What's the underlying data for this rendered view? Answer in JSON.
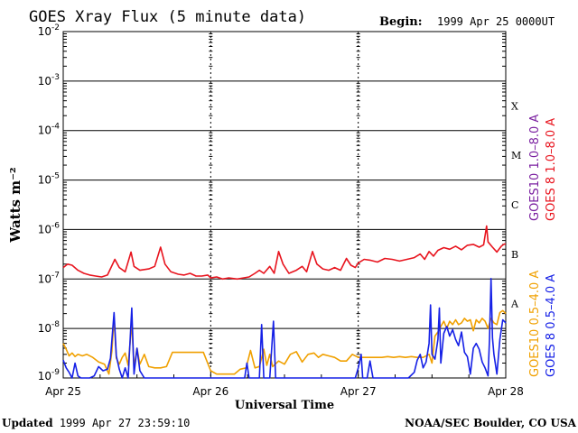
{
  "header": {
    "title": "GOES Xray Flux (5 minute data)",
    "begin_label": "Begin:",
    "begin_value": "1999 Apr 25 0000UT"
  },
  "footer": {
    "updated_label": "Updated",
    "updated_value": "1999 Apr 27 23:59:10",
    "credit": "NOAA/SEC Boulder, CO USA"
  },
  "colors": {
    "goes10_long": "#7a1fa0",
    "goes8_long": "#e8141e",
    "goes10_short": "#f0a000",
    "goes8_short": "#1520e6"
  },
  "chart_data": {
    "type": "line",
    "title": "GOES Xray Flux (5 minute data)",
    "xlabel": "Universal Time",
    "ylabel": "Watts m⁻²",
    "x_unit": "days since 1999 Apr 25 00:00 UT",
    "xlim": [
      0,
      3
    ],
    "ylim": [
      1e-09,
      0.01
    ],
    "y_scale": "log",
    "x_tick_labels": [
      "Apr 25",
      "Apr 26",
      "Apr 27",
      "Apr 28"
    ],
    "y_tick_labels": [
      {
        "base": "10",
        "exp": "-2"
      },
      {
        "base": "10",
        "exp": "-3"
      },
      {
        "base": "10",
        "exp": "-4"
      },
      {
        "base": "10",
        "exp": "-5"
      },
      {
        "base": "10",
        "exp": "-6"
      },
      {
        "base": "10",
        "exp": "-7"
      },
      {
        "base": "10",
        "exp": "-8"
      },
      {
        "base": "10",
        "exp": "-9"
      }
    ],
    "flare_classes": [
      "X",
      "M",
      "C",
      "B",
      "A"
    ],
    "grid": true,
    "legend_position": "right",
    "series": [
      {
        "name": "GOES10 1.0–8.0 A",
        "color": "#7a1fa0",
        "points": []
      },
      {
        "name": "GOES 8 1.0–8.0 A",
        "color": "#e8141e",
        "points": [
          [
            0.0,
            1.7e-07
          ],
          [
            0.03,
            2e-07
          ],
          [
            0.06,
            1.9e-07
          ],
          [
            0.1,
            1.5e-07
          ],
          [
            0.14,
            1.3e-07
          ],
          [
            0.18,
            1.2e-07
          ],
          [
            0.22,
            1.15e-07
          ],
          [
            0.26,
            1.1e-07
          ],
          [
            0.3,
            1.2e-07
          ],
          [
            0.35,
            2.5e-07
          ],
          [
            0.38,
            1.7e-07
          ],
          [
            0.42,
            1.4e-07
          ],
          [
            0.46,
            3.5e-07
          ],
          [
            0.48,
            1.8e-07
          ],
          [
            0.52,
            1.5e-07
          ],
          [
            0.58,
            1.6e-07
          ],
          [
            0.62,
            1.8e-07
          ],
          [
            0.66,
            4.4e-07
          ],
          [
            0.69,
            2e-07
          ],
          [
            0.73,
            1.4e-07
          ],
          [
            0.78,
            1.25e-07
          ],
          [
            0.82,
            1.2e-07
          ],
          [
            0.86,
            1.3e-07
          ],
          [
            0.9,
            1.15e-07
          ],
          [
            0.94,
            1.15e-07
          ],
          [
            0.98,
            1.2e-07
          ],
          [
            1.0,
            1.05e-07
          ],
          [
            1.04,
            1.1e-07
          ],
          [
            1.08,
            1e-07
          ],
          [
            1.12,
            1.05e-07
          ],
          [
            1.18,
            1e-07
          ],
          [
            1.22,
            1.05e-07
          ],
          [
            1.26,
            1.1e-07
          ],
          [
            1.3,
            1.3e-07
          ],
          [
            1.33,
            1.5e-07
          ],
          [
            1.36,
            1.3e-07
          ],
          [
            1.4,
            1.8e-07
          ],
          [
            1.43,
            1.3e-07
          ],
          [
            1.46,
            3.6e-07
          ],
          [
            1.49,
            2e-07
          ],
          [
            1.53,
            1.3e-07
          ],
          [
            1.58,
            1.5e-07
          ],
          [
            1.62,
            1.8e-07
          ],
          [
            1.65,
            1.4e-07
          ],
          [
            1.69,
            3.6e-07
          ],
          [
            1.72,
            2e-07
          ],
          [
            1.76,
            1.6e-07
          ],
          [
            1.8,
            1.5e-07
          ],
          [
            1.84,
            1.7e-07
          ],
          [
            1.88,
            1.5e-07
          ],
          [
            1.92,
            2.6e-07
          ],
          [
            1.95,
            1.9e-07
          ],
          [
            1.98,
            1.7e-07
          ],
          [
            2.0,
            2.1e-07
          ],
          [
            2.04,
            2.5e-07
          ],
          [
            2.08,
            2.4e-07
          ],
          [
            2.13,
            2.2e-07
          ],
          [
            2.18,
            2.6e-07
          ],
          [
            2.23,
            2.5e-07
          ],
          [
            2.28,
            2.3e-07
          ],
          [
            2.33,
            2.5e-07
          ],
          [
            2.38,
            2.7e-07
          ],
          [
            2.42,
            3.2e-07
          ],
          [
            2.45,
            2.5e-07
          ],
          [
            2.48,
            3.6e-07
          ],
          [
            2.51,
            2.9e-07
          ],
          [
            2.54,
            3.8e-07
          ],
          [
            2.58,
            4.3e-07
          ],
          [
            2.62,
            4e-07
          ],
          [
            2.66,
            4.6e-07
          ],
          [
            2.7,
            3.9e-07
          ],
          [
            2.74,
            4.8e-07
          ],
          [
            2.78,
            5e-07
          ],
          [
            2.82,
            4.4e-07
          ],
          [
            2.85,
            4.9e-07
          ],
          [
            2.87,
            1.18e-06
          ],
          [
            2.88,
            5.6e-07
          ],
          [
            2.91,
            4.4e-07
          ],
          [
            2.94,
            3.5e-07
          ],
          [
            2.97,
            4.6e-07
          ],
          [
            2.99,
            5.1e-07
          ],
          [
            3.0,
            5.1e-07
          ]
        ]
      },
      {
        "name": "GOES10 0.5–4.0 A",
        "color": "#f0a000",
        "points": [
          [
            0.0,
            5e-09
          ],
          [
            0.02,
            3.8e-09
          ],
          [
            0.04,
            2.8e-09
          ],
          [
            0.06,
            3.2e-09
          ],
          [
            0.08,
            2.7e-09
          ],
          [
            0.1,
            3e-09
          ],
          [
            0.13,
            2.8e-09
          ],
          [
            0.16,
            3e-09
          ],
          [
            0.2,
            2.6e-09
          ],
          [
            0.24,
            2.1e-09
          ],
          [
            0.28,
            1.9e-09
          ],
          [
            0.31,
            1.2e-09
          ],
          [
            0.33,
            3.5e-09
          ],
          [
            0.345,
            1.7e-08
          ],
          [
            0.36,
            2.5e-09
          ],
          [
            0.38,
            1.9e-09
          ],
          [
            0.4,
            2.6e-09
          ],
          [
            0.42,
            3.2e-09
          ],
          [
            0.44,
            1.8e-09
          ],
          [
            0.465,
            1.3e-08
          ],
          [
            0.48,
            1.6e-09
          ],
          [
            0.5,
            4e-09
          ],
          [
            0.52,
            1.9e-09
          ],
          [
            0.55,
            3e-09
          ],
          [
            0.58,
            1.7e-09
          ],
          [
            0.62,
            1.6e-09
          ],
          [
            0.66,
            1.6e-09
          ],
          [
            0.7,
            1.7e-09
          ],
          [
            0.74,
            3.3e-09
          ],
          [
            0.78,
            3.3e-09
          ],
          [
            0.82,
            3.3e-09
          ],
          [
            0.86,
            3.3e-09
          ],
          [
            0.9,
            3.3e-09
          ],
          [
            0.95,
            3.3e-09
          ],
          [
            1.0,
            1.4e-09
          ],
          [
            1.04,
            1.2e-09
          ],
          [
            1.08,
            1.2e-09
          ],
          [
            1.12,
            1.2e-09
          ],
          [
            1.16,
            1.2e-09
          ],
          [
            1.2,
            1.5e-09
          ],
          [
            1.24,
            1.6e-09
          ],
          [
            1.27,
            3.6e-09
          ],
          [
            1.3,
            1.6e-09
          ],
          [
            1.33,
            1.7e-09
          ],
          [
            1.36,
            3.8e-09
          ],
          [
            1.38,
            1.8e-09
          ],
          [
            1.4,
            3e-09
          ],
          [
            1.42,
            1.7e-09
          ],
          [
            1.46,
            2.2e-09
          ],
          [
            1.5,
            1.9e-09
          ],
          [
            1.54,
            3e-09
          ],
          [
            1.58,
            3.4e-09
          ],
          [
            1.62,
            2.1e-09
          ],
          [
            1.66,
            3e-09
          ],
          [
            1.7,
            3.2e-09
          ],
          [
            1.73,
            2.6e-09
          ],
          [
            1.76,
            3e-09
          ],
          [
            1.8,
            2.8e-09
          ],
          [
            1.84,
            2.6e-09
          ],
          [
            1.88,
            2.2e-09
          ],
          [
            1.92,
            2.2e-09
          ],
          [
            1.96,
            3e-09
          ],
          [
            2.0,
            2.6e-09
          ],
          [
            2.04,
            2.6e-09
          ],
          [
            2.08,
            2.6e-09
          ],
          [
            2.12,
            2.6e-09
          ],
          [
            2.16,
            2.6e-09
          ],
          [
            2.2,
            2.7e-09
          ],
          [
            2.24,
            2.6e-09
          ],
          [
            2.28,
            2.7e-09
          ],
          [
            2.32,
            2.6e-09
          ],
          [
            2.36,
            2.7e-09
          ],
          [
            2.4,
            2.6e-09
          ],
          [
            2.44,
            2.6e-09
          ],
          [
            2.48,
            3e-09
          ],
          [
            2.5,
            2e-09
          ],
          [
            2.52,
            7e-09
          ],
          [
            2.54,
            8.5e-09
          ],
          [
            2.56,
            1.1e-08
          ],
          [
            2.58,
            1.4e-08
          ],
          [
            2.6,
            1e-08
          ],
          [
            2.62,
            1.4e-08
          ],
          [
            2.64,
            1.2e-08
          ],
          [
            2.66,
            1.5e-08
          ],
          [
            2.68,
            1.2e-08
          ],
          [
            2.7,
            1.3e-08
          ],
          [
            2.72,
            1.6e-08
          ],
          [
            2.74,
            1.4e-08
          ],
          [
            2.76,
            1.5e-08
          ],
          [
            2.78,
            9e-09
          ],
          [
            2.8,
            1.5e-08
          ],
          [
            2.82,
            1.3e-08
          ],
          [
            2.84,
            1.6e-08
          ],
          [
            2.86,
            1.4e-08
          ],
          [
            2.88,
            1e-08
          ],
          [
            2.9,
            1.6e-08
          ],
          [
            2.92,
            1.3e-08
          ],
          [
            2.94,
            1.2e-08
          ],
          [
            2.96,
            2.1e-08
          ],
          [
            2.98,
            2.3e-08
          ],
          [
            3.0,
            2e-08
          ]
        ]
      },
      {
        "name": "GOES 8 0.5–4.0 A",
        "color": "#1520e6",
        "points": [
          [
            0.0,
            2.3e-09
          ],
          [
            0.02,
            1.6e-09
          ],
          [
            0.04,
            1.3e-09
          ],
          [
            0.06,
            1e-09
          ],
          [
            0.08,
            2e-09
          ],
          [
            0.1,
            1.1e-09
          ],
          [
            0.12,
            1e-09
          ],
          [
            0.15,
            1e-09
          ],
          [
            0.18,
            1e-09
          ],
          [
            0.21,
            1.1e-09
          ],
          [
            0.24,
            1.7e-09
          ],
          [
            0.27,
            1.4e-09
          ],
          [
            0.3,
            1.5e-09
          ],
          [
            0.32,
            2.5e-09
          ],
          [
            0.345,
            2.1e-08
          ],
          [
            0.36,
            2.8e-09
          ],
          [
            0.38,
            1.5e-09
          ],
          [
            0.4,
            1e-09
          ],
          [
            0.42,
            1.6e-09
          ],
          [
            0.44,
            1e-09
          ],
          [
            0.465,
            2.6e-08
          ],
          [
            0.48,
            1.2e-09
          ],
          [
            0.5,
            4e-09
          ],
          [
            0.52,
            1.4e-09
          ],
          [
            0.55,
            1e-09
          ],
          [
            0.6,
            1e-09
          ],
          [
            0.66,
            1e-09
          ],
          [
            0.72,
            1e-09
          ],
          [
            0.78,
            1e-09
          ],
          [
            0.84,
            1e-09
          ],
          [
            0.9,
            1e-09
          ],
          [
            0.96,
            1e-09
          ],
          [
            1.02,
            1e-09
          ],
          [
            1.08,
            1e-09
          ],
          [
            1.14,
            1e-09
          ],
          [
            1.2,
            1e-09
          ],
          [
            1.23,
            1e-09
          ],
          [
            1.245,
            2e-09
          ],
          [
            1.26,
            1e-09
          ],
          [
            1.3,
            1e-09
          ],
          [
            1.33,
            1e-09
          ],
          [
            1.345,
            1.2e-08
          ],
          [
            1.36,
            1e-09
          ],
          [
            1.4,
            1e-09
          ],
          [
            1.425,
            1.4e-08
          ],
          [
            1.44,
            1e-09
          ],
          [
            1.5,
            1e-09
          ],
          [
            1.56,
            1e-09
          ],
          [
            1.62,
            1e-09
          ],
          [
            1.68,
            1e-09
          ],
          [
            1.74,
            1e-09
          ],
          [
            1.8,
            1e-09
          ],
          [
            1.86,
            1e-09
          ],
          [
            1.92,
            1e-09
          ],
          [
            1.98,
            1e-09
          ],
          [
            2.0,
            1.6e-09
          ],
          [
            2.02,
            3e-09
          ],
          [
            2.03,
            1e-09
          ],
          [
            2.06,
            1e-09
          ],
          [
            2.08,
            2.2e-09
          ],
          [
            2.1,
            1e-09
          ],
          [
            2.16,
            1e-09
          ],
          [
            2.22,
            1e-09
          ],
          [
            2.28,
            1e-09
          ],
          [
            2.34,
            1e-09
          ],
          [
            2.38,
            1.3e-09
          ],
          [
            2.4,
            2.3e-09
          ],
          [
            2.42,
            3e-09
          ],
          [
            2.44,
            1.6e-09
          ],
          [
            2.46,
            2.1e-09
          ],
          [
            2.48,
            5e-09
          ],
          [
            2.49,
            3e-08
          ],
          [
            2.5,
            3e-09
          ],
          [
            2.52,
            2.4e-09
          ],
          [
            2.54,
            6e-09
          ],
          [
            2.55,
            2.6e-08
          ],
          [
            2.56,
            2e-09
          ],
          [
            2.58,
            8e-09
          ],
          [
            2.6,
            1.1e-08
          ],
          [
            2.62,
            7e-09
          ],
          [
            2.64,
            9.5e-09
          ],
          [
            2.66,
            6e-09
          ],
          [
            2.68,
            4.5e-09
          ],
          [
            2.7,
            8.5e-09
          ],
          [
            2.72,
            3.3e-09
          ],
          [
            2.74,
            2.7e-09
          ],
          [
            2.76,
            1.2e-09
          ],
          [
            2.78,
            4e-09
          ],
          [
            2.8,
            5e-09
          ],
          [
            2.82,
            3.8e-09
          ],
          [
            2.84,
            2.1e-09
          ],
          [
            2.86,
            1.6e-09
          ],
          [
            2.88,
            1.1e-09
          ],
          [
            2.89,
            6e-09
          ],
          [
            2.9,
            1.02e-07
          ],
          [
            2.91,
            6.5e-09
          ],
          [
            2.92,
            3e-09
          ],
          [
            2.94,
            1.2e-09
          ],
          [
            2.96,
            6e-09
          ],
          [
            2.98,
            1.5e-08
          ],
          [
            3.0,
            1.3e-08
          ]
        ]
      }
    ]
  }
}
